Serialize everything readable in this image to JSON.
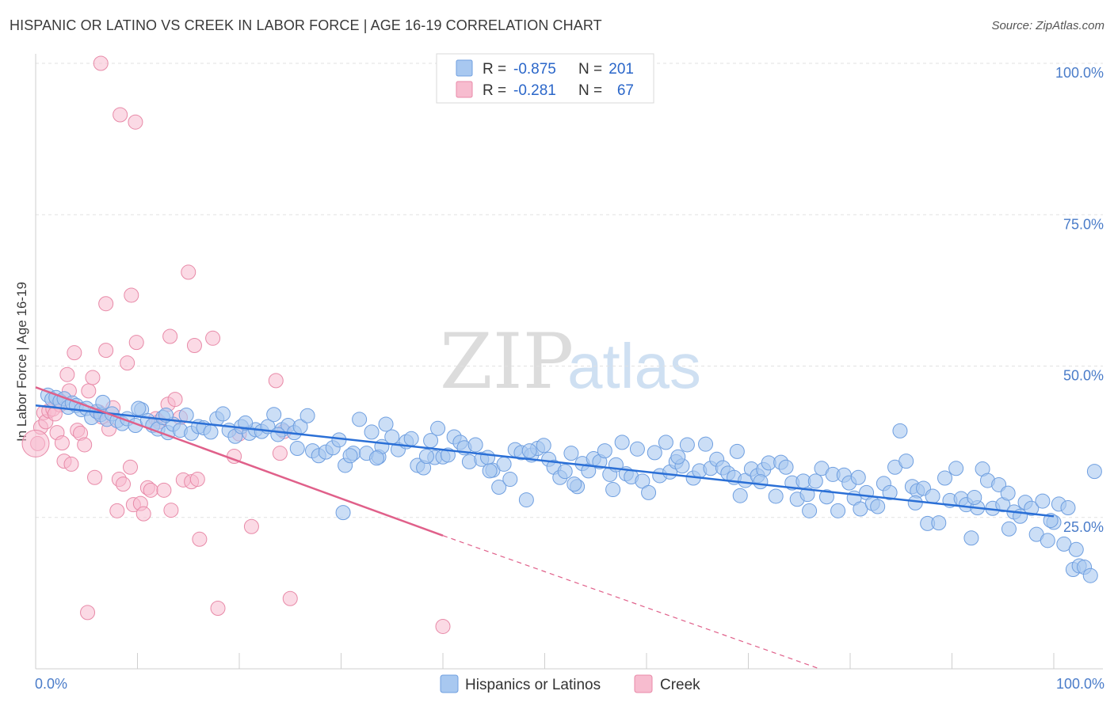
{
  "header": {
    "title": "HISPANIC OR LATINO VS CREEK IN LABOR FORCE | AGE 16-19 CORRELATION CHART",
    "source": "Source: ZipAtlas.com"
  },
  "watermark": {
    "zip": "ZIP",
    "atlas": "atlas"
  },
  "colors": {
    "blue_fill": "#a8c8f0",
    "blue_stroke": "#6f9fe0",
    "blue_line": "#2a6fd6",
    "pink_fill": "#f7bccf",
    "pink_stroke": "#e88aa8",
    "pink_line": "#e0608a",
    "tick_text": "#4a7cc9"
  },
  "legend_box": {
    "r_label": "R =",
    "n_label": "N =",
    "rows": [
      {
        "series": "Hispanics or Latinos",
        "r": "-0.875",
        "n": "201"
      },
      {
        "series": "Creek",
        "r": "-0.281",
        "n": "67"
      }
    ]
  },
  "chart_data": {
    "type": "scatter",
    "title": "HISPANIC OR LATINO VS CREEK IN LABOR FORCE | AGE 16-19 CORRELATION CHART",
    "xlabel": "",
    "ylabel": "In Labor Force | Age 16-19",
    "xlim": [
      0,
      100
    ],
    "ylim": [
      0,
      102
    ],
    "x_tick_labels": [
      "0.0%",
      "100.0%"
    ],
    "y_ticks": [
      25,
      50,
      75,
      100
    ],
    "y_tick_labels": [
      "25.0%",
      "50.0%",
      "75.0%",
      "100.0%"
    ],
    "grid": true,
    "legend_position": "bottom",
    "series": [
      {
        "name": "Hispanics or Latinos",
        "r": -0.875,
        "n": 201,
        "trend": {
          "x": [
            0,
            100
          ],
          "y": [
            43.5,
            25.2
          ]
        },
        "points": [
          [
            1.2,
            45.2
          ],
          [
            1.6,
            44.5
          ],
          [
            2.0,
            44.8
          ],
          [
            2.4,
            44.2
          ],
          [
            2.8,
            44.6
          ],
          [
            3.2,
            43.2
          ],
          [
            3.6,
            43.9
          ],
          [
            4.0,
            43.5
          ],
          [
            4.5,
            42.8
          ],
          [
            5.0,
            43.0
          ],
          [
            5.5,
            41.5
          ],
          [
            6.0,
            42.5
          ],
          [
            6.4,
            42.0
          ],
          [
            7.0,
            41.2
          ],
          [
            7.5,
            42.1
          ],
          [
            8.0,
            41.0
          ],
          [
            8.5,
            40.5
          ],
          [
            9.0,
            41.3
          ],
          [
            9.8,
            40.2
          ],
          [
            10.4,
            42.8
          ],
          [
            11.0,
            41.0
          ],
          [
            11.5,
            40.2
          ],
          [
            12.0,
            39.6
          ],
          [
            12.5,
            41.5
          ],
          [
            13.0,
            39.0
          ],
          [
            13.5,
            40.4
          ],
          [
            14.2,
            39.4
          ],
          [
            14.8,
            41.9
          ],
          [
            15.3,
            38.9
          ],
          [
            16.0,
            40.0
          ],
          [
            16.5,
            39.8
          ],
          [
            17.2,
            39.1
          ],
          [
            17.8,
            41.3
          ],
          [
            18.4,
            42.1
          ],
          [
            19.0,
            39.4
          ],
          [
            19.6,
            38.4
          ],
          [
            20.2,
            40.0
          ],
          [
            21.0,
            38.9
          ],
          [
            21.6,
            39.5
          ],
          [
            22.2,
            39.2
          ],
          [
            22.8,
            40.0
          ],
          [
            23.4,
            42.0
          ],
          [
            24.2,
            39.5
          ],
          [
            24.8,
            40.2
          ],
          [
            25.4,
            39.0
          ],
          [
            26.0,
            40.0
          ],
          [
            26.7,
            41.8
          ],
          [
            27.2,
            36.0
          ],
          [
            27.8,
            35.2
          ],
          [
            28.5,
            35.8
          ],
          [
            29.2,
            36.5
          ],
          [
            29.8,
            37.8
          ],
          [
            30.4,
            33.6
          ],
          [
            31.2,
            35.6
          ],
          [
            31.8,
            41.2
          ],
          [
            32.5,
            35.6
          ],
          [
            33.0,
            39.1
          ],
          [
            33.7,
            35.0
          ],
          [
            34.4,
            40.4
          ],
          [
            35.0,
            38.3
          ],
          [
            35.6,
            36.2
          ],
          [
            36.4,
            37.5
          ],
          [
            36.9,
            38.0
          ],
          [
            37.5,
            33.6
          ],
          [
            38.1,
            33.2
          ],
          [
            38.8,
            37.7
          ],
          [
            39.2,
            34.9
          ],
          [
            39.5,
            39.7
          ],
          [
            40.0,
            35.0
          ],
          [
            40.5,
            35.3
          ],
          [
            41.1,
            38.3
          ],
          [
            41.7,
            37.4
          ],
          [
            42.1,
            36.5
          ],
          [
            42.6,
            34.2
          ],
          [
            43.2,
            37.0
          ],
          [
            43.8,
            34.6
          ],
          [
            44.4,
            34.9
          ],
          [
            44.9,
            32.8
          ],
          [
            45.5,
            30.0
          ],
          [
            46.0,
            33.8
          ],
          [
            46.6,
            31.3
          ],
          [
            47.1,
            36.2
          ],
          [
            47.7,
            35.7
          ],
          [
            48.2,
            27.9
          ],
          [
            48.7,
            35.3
          ],
          [
            49.3,
            36.4
          ],
          [
            49.9,
            36.9
          ],
          [
            50.4,
            34.6
          ],
          [
            50.9,
            33.3
          ],
          [
            51.5,
            31.6
          ],
          [
            52.0,
            32.6
          ],
          [
            52.6,
            35.6
          ],
          [
            53.2,
            30.1
          ],
          [
            53.7,
            33.9
          ],
          [
            54.3,
            32.7
          ],
          [
            54.8,
            34.7
          ],
          [
            55.4,
            34.2
          ],
          [
            55.9,
            36.0
          ],
          [
            56.4,
            32.1
          ],
          [
            57.0,
            33.7
          ],
          [
            57.6,
            37.4
          ],
          [
            58.0,
            32.2
          ],
          [
            58.5,
            31.7
          ],
          [
            59.1,
            36.3
          ],
          [
            59.6,
            31.0
          ],
          [
            60.2,
            29.1
          ],
          [
            60.8,
            35.7
          ],
          [
            61.3,
            31.9
          ],
          [
            61.9,
            37.4
          ],
          [
            62.3,
            32.5
          ],
          [
            62.9,
            34.2
          ],
          [
            63.5,
            33.5
          ],
          [
            64.0,
            37.0
          ],
          [
            64.6,
            31.5
          ],
          [
            65.2,
            32.7
          ],
          [
            65.8,
            37.1
          ],
          [
            66.3,
            33.1
          ],
          [
            66.9,
            34.6
          ],
          [
            67.5,
            33.2
          ],
          [
            68.0,
            32.3
          ],
          [
            68.6,
            31.6
          ],
          [
            69.2,
            28.6
          ],
          [
            69.7,
            31.1
          ],
          [
            70.3,
            33.0
          ],
          [
            70.9,
            31.9
          ],
          [
            71.5,
            32.9
          ],
          [
            72.0,
            34.0
          ],
          [
            72.7,
            28.5
          ],
          [
            73.2,
            34.1
          ],
          [
            73.7,
            33.3
          ],
          [
            74.3,
            30.7
          ],
          [
            74.8,
            28.0
          ],
          [
            75.4,
            31.0
          ],
          [
            76.0,
            26.1
          ],
          [
            76.6,
            31.0
          ],
          [
            77.2,
            33.1
          ],
          [
            77.7,
            28.4
          ],
          [
            78.3,
            32.1
          ],
          [
            78.8,
            26.1
          ],
          [
            79.4,
            32.0
          ],
          [
            79.9,
            30.7
          ],
          [
            80.4,
            28.2
          ],
          [
            81.0,
            26.4
          ],
          [
            81.6,
            29.1
          ],
          [
            82.2,
            27.3
          ],
          [
            82.7,
            26.8
          ],
          [
            83.3,
            30.6
          ],
          [
            83.9,
            29.1
          ],
          [
            84.4,
            33.3
          ],
          [
            84.9,
            39.3
          ],
          [
            85.5,
            34.3
          ],
          [
            86.1,
            30.1
          ],
          [
            86.6,
            29.4
          ],
          [
            87.2,
            29.8
          ],
          [
            87.6,
            24.0
          ],
          [
            88.1,
            28.5
          ],
          [
            88.7,
            24.1
          ],
          [
            89.3,
            31.5
          ],
          [
            89.8,
            27.8
          ],
          [
            90.4,
            33.1
          ],
          [
            90.9,
            28.1
          ],
          [
            91.4,
            27.1
          ],
          [
            91.9,
            21.6
          ],
          [
            92.5,
            26.6
          ],
          [
            93.0,
            33.0
          ],
          [
            93.5,
            31.1
          ],
          [
            94.0,
            26.5
          ],
          [
            94.6,
            30.4
          ],
          [
            95.0,
            27.1
          ],
          [
            95.5,
            29.0
          ],
          [
            96.1,
            25.9
          ],
          [
            96.7,
            25.2
          ],
          [
            97.2,
            27.5
          ],
          [
            97.8,
            26.5
          ],
          [
            98.3,
            22.2
          ],
          [
            98.9,
            27.7
          ],
          [
            99.4,
            21.2
          ],
          [
            100.0,
            24.2
          ],
          [
            100.5,
            27.2
          ],
          [
            101.0,
            20.6
          ],
          [
            101.4,
            26.6
          ],
          [
            101.9,
            16.4
          ],
          [
            102.5,
            17.0
          ],
          [
            103.0,
            16.8
          ],
          [
            103.6,
            15.4
          ],
          [
            104.0,
            32.6
          ],
          [
            6.6,
            44.0
          ],
          [
            10.1,
            43.0
          ],
          [
            12.8,
            41.9
          ],
          [
            20.6,
            40.6
          ],
          [
            23.8,
            38.7
          ],
          [
            25.7,
            36.4
          ],
          [
            30.9,
            35.2
          ],
          [
            34.0,
            36.7
          ],
          [
            38.4,
            35.1
          ],
          [
            44.6,
            32.7
          ],
          [
            48.5,
            36.0
          ],
          [
            52.9,
            30.5
          ],
          [
            56.7,
            29.6
          ],
          [
            63.1,
            35.0
          ],
          [
            68.9,
            35.9
          ],
          [
            71.2,
            30.9
          ],
          [
            75.8,
            28.8
          ],
          [
            80.8,
            31.6
          ],
          [
            86.4,
            27.4
          ],
          [
            92.2,
            28.3
          ],
          [
            95.6,
            23.1
          ],
          [
            99.7,
            24.5
          ],
          [
            102.2,
            19.7
          ],
          [
            30.2,
            25.8
          ],
          [
            33.5,
            34.8
          ]
        ]
      },
      {
        "name": "Creek",
        "r": -0.281,
        "n": 67,
        "trend": {
          "x": [
            0,
            40
          ],
          "y": [
            46.5,
            22.0
          ]
        },
        "trend_ext": {
          "x": [
            40,
            77
          ],
          "y": [
            22.0,
            0
          ]
        },
        "points": [
          [
            0.2,
            37.2
          ],
          [
            0.5,
            39.9
          ],
          [
            0.8,
            42.3
          ],
          [
            1.0,
            40.8
          ],
          [
            1.3,
            42.6
          ],
          [
            1.7,
            42.9
          ],
          [
            2.1,
            39.0
          ],
          [
            2.4,
            43.6
          ],
          [
            2.6,
            37.3
          ],
          [
            2.8,
            34.3
          ],
          [
            3.1,
            48.6
          ],
          [
            3.3,
            45.9
          ],
          [
            3.5,
            33.8
          ],
          [
            3.8,
            52.2
          ],
          [
            4.1,
            39.4
          ],
          [
            4.4,
            38.9
          ],
          [
            4.8,
            37.0
          ],
          [
            5.2,
            45.9
          ],
          [
            5.6,
            48.1
          ],
          [
            5.8,
            31.6
          ],
          [
            6.2,
            42.4
          ],
          [
            6.5,
            41.6
          ],
          [
            6.9,
            52.6
          ],
          [
            7.2,
            39.6
          ],
          [
            7.6,
            43.1
          ],
          [
            8.0,
            26.1
          ],
          [
            8.2,
            31.3
          ],
          [
            8.6,
            30.5
          ],
          [
            9.0,
            50.5
          ],
          [
            9.3,
            33.3
          ],
          [
            9.6,
            27.1
          ],
          [
            9.9,
            53.9
          ],
          [
            10.3,
            27.3
          ],
          [
            10.6,
            25.6
          ],
          [
            11.0,
            29.9
          ],
          [
            11.3,
            29.5
          ],
          [
            11.8,
            41.3
          ],
          [
            12.1,
            40.8
          ],
          [
            12.6,
            29.5
          ],
          [
            13.0,
            43.7
          ],
          [
            13.3,
            26.2
          ],
          [
            13.7,
            44.5
          ],
          [
            14.2,
            41.5
          ],
          [
            14.5,
            31.2
          ],
          [
            15.0,
            65.5
          ],
          [
            15.3,
            30.9
          ],
          [
            15.6,
            53.4
          ],
          [
            16.1,
            21.4
          ],
          [
            17.4,
            54.6
          ],
          [
            17.9,
            10.0
          ],
          [
            19.5,
            35.1
          ],
          [
            20.0,
            38.8
          ],
          [
            21.2,
            23.5
          ],
          [
            23.6,
            47.6
          ],
          [
            24.0,
            35.6
          ],
          [
            25.0,
            11.6
          ],
          [
            6.4,
            100.0
          ],
          [
            8.3,
            91.5
          ],
          [
            9.8,
            90.3
          ],
          [
            6.9,
            60.3
          ],
          [
            9.4,
            61.7
          ],
          [
            13.2,
            54.9
          ],
          [
            15.9,
            31.3
          ],
          [
            24.4,
            39.2
          ],
          [
            5.1,
            9.3
          ],
          [
            40.0,
            7.0
          ],
          [
            1.9,
            42.1
          ]
        ]
      }
    ]
  },
  "bottom_legend": {
    "items": [
      "Hispanics or Latinos",
      "Creek"
    ]
  }
}
